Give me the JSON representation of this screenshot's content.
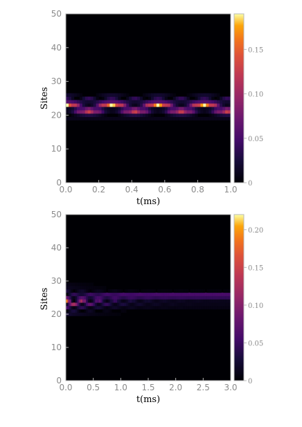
{
  "chart_data": [
    {
      "type": "heatmap",
      "title": "",
      "xlabel": "t(ms)",
      "ylabel": "Sites",
      "xlim": [
        0,
        1.0
      ],
      "ylim": [
        0,
        50
      ],
      "xticks": [
        "0.0",
        "0.2",
        "0.4",
        "0.6",
        "0.8",
        "1.0"
      ],
      "yticks": [
        "0",
        "10",
        "20",
        "30",
        "40",
        "50"
      ],
      "colorbar": {
        "min": 0,
        "max": 0.19,
        "ticks": [
          "0",
          "0.05",
          "0.10",
          "0.15"
        ]
      },
      "colormap": "inferno",
      "background_color": "#000004",
      "dominant_sites": [
        21,
        22,
        23,
        24,
        25
      ],
      "peak_sites": [
        23,
        21
      ],
      "peak_value": 0.19
    },
    {
      "type": "heatmap",
      "title": "",
      "xlabel": "t(ms)",
      "ylabel": "Sites",
      "xlim": [
        0,
        3.0
      ],
      "ylim": [
        0,
        50
      ],
      "xticks": [
        "0.0",
        "0.5",
        "1.0",
        "1.5",
        "2.0",
        "2.5",
        "3.0"
      ],
      "yticks": [
        "0",
        "10",
        "20",
        "30",
        "40",
        "50"
      ],
      "colorbar": {
        "min": 0,
        "max": 0.22,
        "ticks": [
          "0",
          "0.05",
          "0.10",
          "0.15",
          "0.20"
        ]
      },
      "colormap": "inferno",
      "background_color": "#000004",
      "dominant_sites": [
        22,
        23,
        24,
        25,
        26
      ],
      "peak_sites": [
        24
      ],
      "peak_value": 0.22,
      "steady_site": 26,
      "steady_value": 0.06
    }
  ]
}
